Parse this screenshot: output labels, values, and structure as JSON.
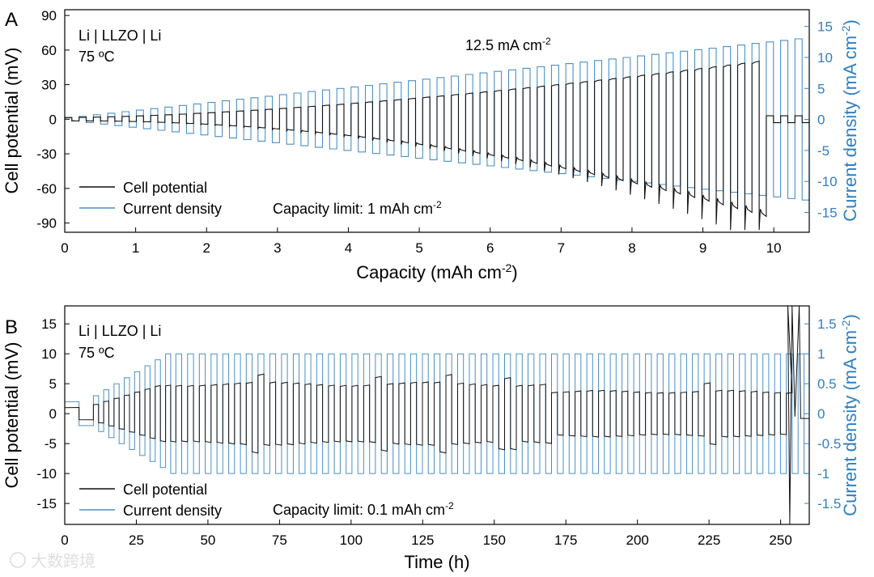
{
  "chart_data": [
    {
      "panel_label": "A",
      "type": "line",
      "xlabel": "Capacity (mAh cm",
      "xlabel_sup": "-2",
      "xlabel_tail": ")",
      "ylabel": "Cell potential (mV)",
      "y2label": "Current density (mA cm",
      "y2label_sup": "-2",
      "y2label_tail": ")",
      "xlim": [
        0,
        10.5
      ],
      "ylim": [
        -98,
        95
      ],
      "y2lim": [
        -18.2,
        17.7
      ],
      "x_ticks": [
        0,
        1,
        2,
        3,
        4,
        5,
        6,
        7,
        8,
        9,
        10
      ],
      "y_ticks": [
        -90,
        -60,
        -30,
        0,
        30,
        60,
        90
      ],
      "y2_ticks": [
        -15,
        -10,
        -5,
        0,
        5,
        10,
        15
      ],
      "annotations": {
        "cell": "Li | LLZO | Li",
        "temperature": "75 ºC",
        "peak_label": "12.5 mA cm",
        "peak_label_sup": "-2",
        "limit_label": "Capacity limit: 1 mAh cm",
        "limit_label_sup": "-2"
      },
      "legend": {
        "position": "bottom-left",
        "entries": [
          "Cell potential",
          "Current density"
        ]
      },
      "cycling": {
        "step_mA_cm2": 0.25,
        "num_cycles": 52,
        "capacity_limit_mAh_cm2": 1,
        "short_circuit_capacity_mAh_cm2": 9.85,
        "peak_potential_mV": 52,
        "minimum_potential_mV": -96
      },
      "series": [
        {
          "name": "Cell potential",
          "color": "#111111"
        },
        {
          "name": "Current density",
          "color": "#4a90c8"
        }
      ]
    },
    {
      "panel_label": "B",
      "type": "line",
      "xlabel": "Time (h)",
      "ylabel": "Cell potential (mV)",
      "y2label": "Current density (mA cm",
      "y2label_sup": "-2",
      "y2label_tail": ")",
      "xlim": [
        0,
        260
      ],
      "ylim": [
        -18.5,
        18
      ],
      "y2lim": [
        -1.85,
        1.8
      ],
      "x_ticks": [
        0,
        25,
        50,
        75,
        100,
        125,
        150,
        175,
        200,
        225,
        250
      ],
      "y_ticks": [
        -15,
        -10,
        -5,
        0,
        5,
        10,
        15
      ],
      "y2_ticks": [
        -1.5,
        -1,
        -0.5,
        0,
        0.5,
        1,
        1.5
      ],
      "annotations": {
        "cell": "Li | LLZO | Li",
        "temperature": "75 ºC",
        "limit_label": "Capacity limit: 0.1 mAh cm",
        "limit_label_sup": "-2"
      },
      "legend": {
        "position": "bottom-left",
        "entries": [
          "Cell potential",
          "Current density"
        ]
      },
      "cycling": {
        "ramp_current_densities_mA_cm2": [
          0.2,
          0.3,
          0.4,
          0.5,
          0.6,
          0.7,
          0.8,
          0.9,
          1.0
        ],
        "plateau_current_density_mA_cm2": 1.0,
        "capacity_limit_mAh_cm2": 0.1,
        "plateau_potential_mV": 5,
        "late_plateau_potential_mV": 3.7,
        "failure_time_h": 253
      },
      "series": [
        {
          "name": "Cell potential",
          "color": "#111111"
        },
        {
          "name": "Current density",
          "color": "#4a90c8"
        }
      ]
    }
  ],
  "watermark": "大数跨境"
}
